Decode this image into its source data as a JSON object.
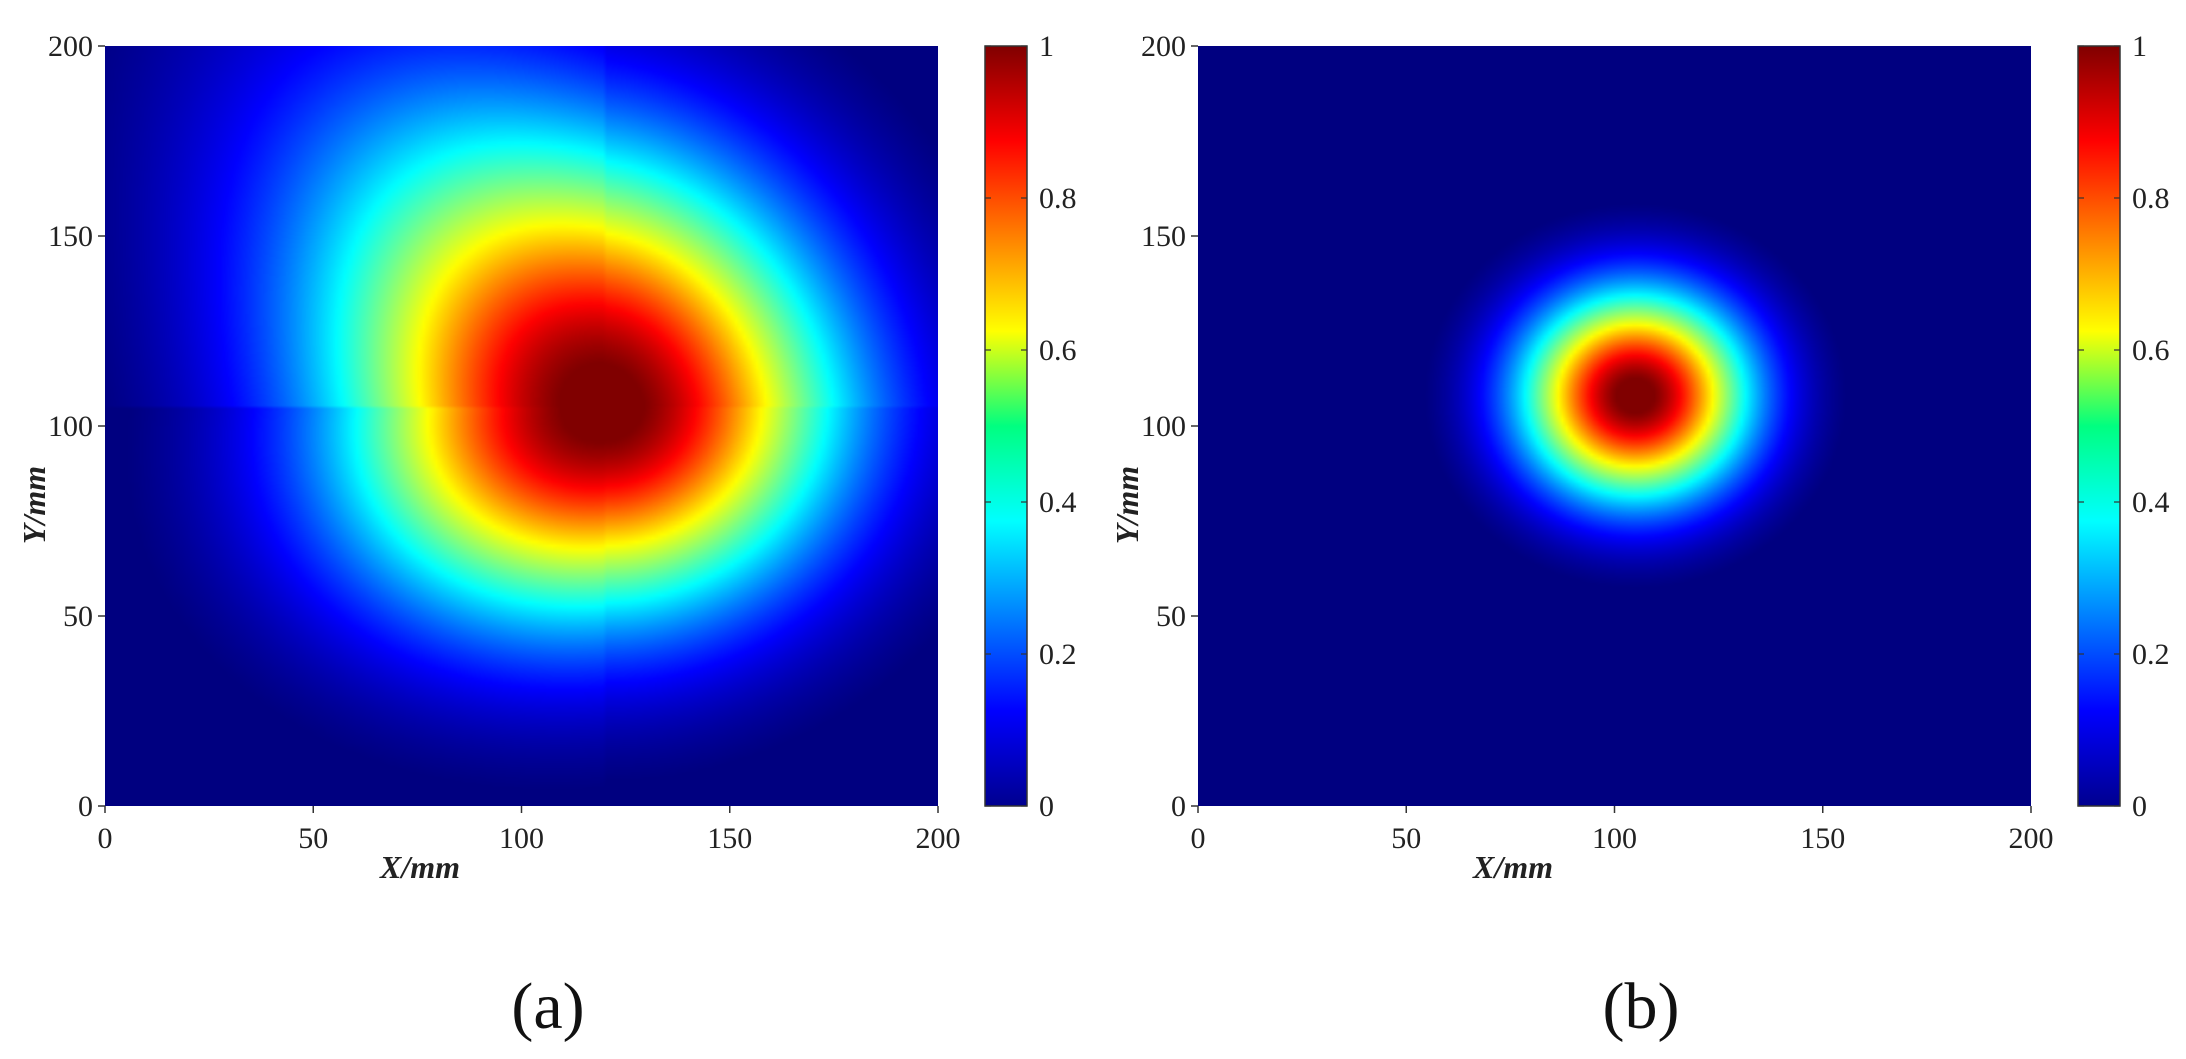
{
  "chart_data": [
    {
      "type": "heatmap",
      "panel_label": "(a)",
      "xlabel": "X/mm",
      "ylabel": "Y/mm",
      "xlim": [
        0,
        200
      ],
      "ylim": [
        0,
        200
      ],
      "x_ticks": [
        0,
        50,
        100,
        150,
        200
      ],
      "y_ticks": [
        0,
        50,
        100,
        150,
        200
      ],
      "colorbar": {
        "range": [
          0,
          1
        ],
        "ticks": [
          "0",
          "0.2",
          "0.4",
          "0.6",
          "0.8",
          "1"
        ],
        "colormap": "jet"
      },
      "field": {
        "description_of_values": "Normalized intensity peaking at 1 near (120, 105), decaying to 0 outside ~(55–180, 50–170)",
        "peak": {
          "x": 120,
          "y": 105,
          "value": 1.0
        },
        "extent_x": [
          55,
          180
        ],
        "extent_y": [
          50,
          172
        ]
      }
    },
    {
      "type": "heatmap",
      "panel_label": "(b)",
      "xlabel": "X/mm",
      "ylabel": "Y/mm",
      "xlim": [
        0,
        200
      ],
      "ylim": [
        0,
        200
      ],
      "x_ticks": [
        0,
        50,
        100,
        150,
        200
      ],
      "y_ticks": [
        0,
        50,
        100,
        150,
        200
      ],
      "colorbar": {
        "range": [
          0,
          1
        ],
        "ticks": [
          "0",
          "0.2",
          "0.4",
          "0.6",
          "0.8",
          "1"
        ],
        "colormap": "jet"
      },
      "field": {
        "description_of_values": "Normalized intensity peaking at 1 near (105, 108), decaying to 0 outside ~(70–140, 72–142)",
        "peak": {
          "x": 105,
          "y": 108,
          "value": 1.0
        },
        "extent_x": [
          70,
          140
        ],
        "extent_y": [
          72,
          142
        ]
      }
    }
  ]
}
